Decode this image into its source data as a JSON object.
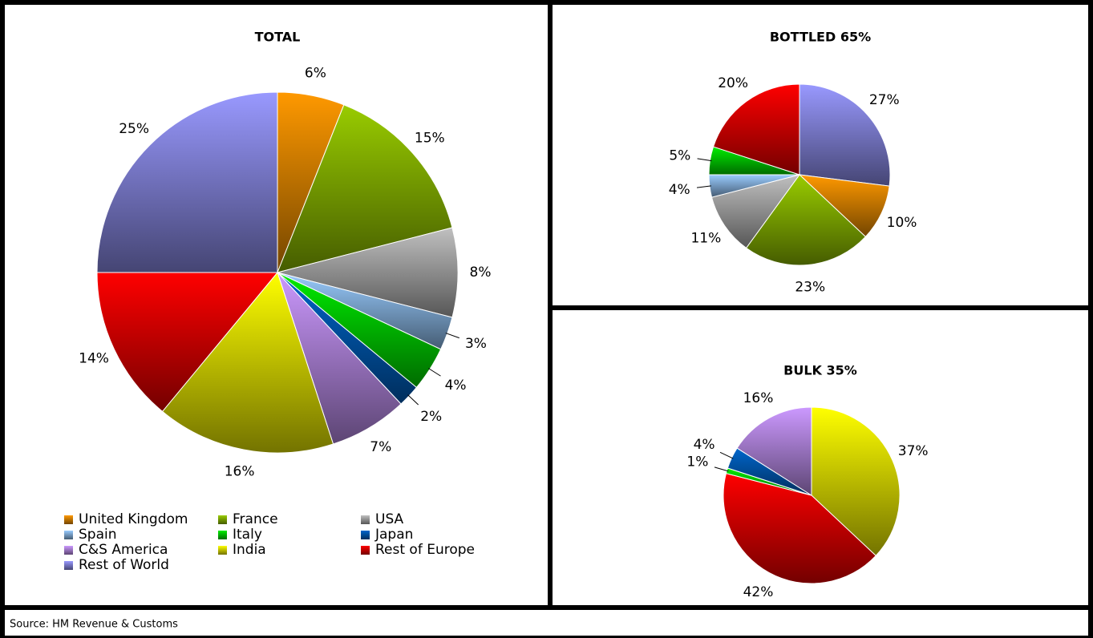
{
  "chart_data": [
    {
      "type": "pie",
      "title": "TOTAL",
      "categories": [
        "United Kingdom",
        "France",
        "USA",
        "Spain",
        "Italy",
        "Japan",
        "C&S America",
        "India",
        "Rest of Europe",
        "Rest of World"
      ],
      "values": [
        6,
        15,
        8,
        3,
        4,
        2,
        7,
        16,
        14,
        25
      ],
      "value_labels": [
        "6%",
        "15%",
        "8%",
        "3%",
        "4%",
        "2%",
        "7%",
        "16%",
        "14%",
        "25%"
      ],
      "colors": [
        "#ff9900",
        "#99cc00",
        "#c0c0c0",
        "#99ccff",
        "#00ee00",
        "#0066cc",
        "#cc99ff",
        "#ffff00",
        "#ff0000",
        "#9999ff"
      ],
      "legend": true
    },
    {
      "type": "pie",
      "title": "BOTTLED  65%",
      "categories": [
        "Rest of World",
        "United Kingdom",
        "France",
        "USA",
        "Spain",
        "Italy",
        "Rest of Europe"
      ],
      "values": [
        27,
        10,
        23,
        11,
        4,
        5,
        20
      ],
      "value_labels": [
        "27%",
        "10%",
        "23%",
        "11%",
        "4%",
        "5%",
        "20%"
      ],
      "colors": [
        "#9999ff",
        "#ff9900",
        "#99cc00",
        "#c0c0c0",
        "#99ccff",
        "#00ee00",
        "#ff0000"
      ],
      "legend": false
    },
    {
      "type": "pie",
      "title": "BULK  35%",
      "categories": [
        "India",
        "Rest of Europe",
        "Italy",
        "Japan",
        "C&S America"
      ],
      "values": [
        37,
        42,
        1,
        4,
        16
      ],
      "value_labels": [
        "37%",
        "42%",
        "1%",
        "4%",
        "16%"
      ],
      "colors": [
        "#ffff00",
        "#ff0000",
        "#00ee00",
        "#0066cc",
        "#cc99ff"
      ],
      "legend": false
    }
  ],
  "source": "Source:  HM Revenue & Customs"
}
